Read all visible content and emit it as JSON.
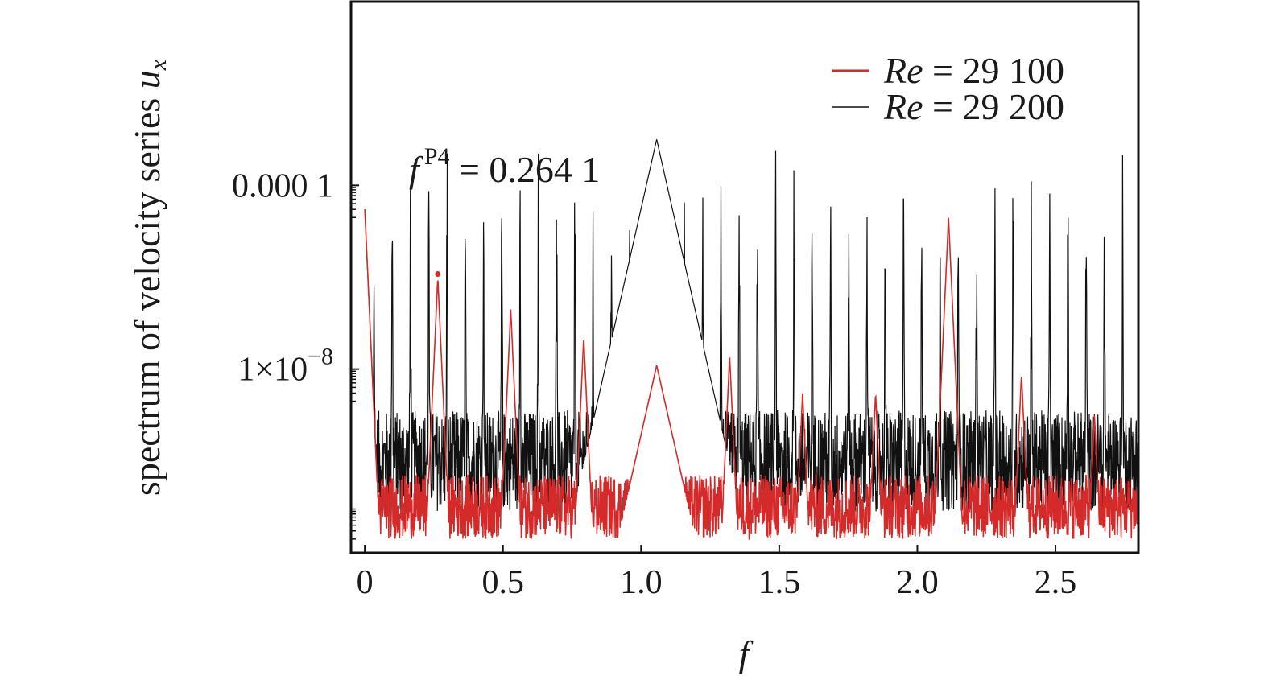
{
  "chart_data": {
    "type": "line",
    "xlabel": "f",
    "ylabel": "spectrum of velocity series ",
    "ylabel_var": "u",
    "ylabel_sub": "x",
    "xlim": [
      -0.05,
      2.8
    ],
    "ylim_log10": [
      -12,
      0
    ],
    "y_scale": "log",
    "x_ticks": [
      0,
      0.5,
      1.0,
      1.5,
      2.0,
      2.5
    ],
    "x_tick_labels": [
      "0",
      "0.5",
      "1.0",
      "1.5",
      "2.0",
      "2.5"
    ],
    "y_ticks": [
      {
        "value": 0.0001,
        "mantissa": "0.000 1",
        "exponent": ""
      },
      {
        "value": 1e-08,
        "mantissa": "1×10",
        "exponent": "−8"
      }
    ],
    "legend": {
      "placement": "top-right",
      "entries": [
        {
          "label_italic": "Re",
          "label_rest": " = 29 100",
          "color": "#d42a2a"
        },
        {
          "label_italic": "Re",
          "label_rest": " = 29 200",
          "color": "#111111"
        }
      ]
    },
    "annotation": {
      "symbol": "f",
      "superscript": "P4",
      "text": " = 0.264 1",
      "x": 0.2641
    },
    "series": [
      {
        "name": "Re = 29 100",
        "color": "#d42a2a",
        "floor_log10": -11,
        "peaks": [
          {
            "x": 0.0,
            "y": 3e-05
          },
          {
            "x": 0.2641,
            "y": 1e-06
          },
          {
            "x": 0.5282,
            "y": 2e-07
          },
          {
            "x": 0.7923,
            "y": 5e-08
          },
          {
            "x": 1.0564,
            "y": 1.2e-08
          },
          {
            "x": 1.3205,
            "y": 2e-08
          },
          {
            "x": 1.5846,
            "y": 3e-09
          },
          {
            "x": 1.8487,
            "y": 3e-09
          },
          {
            "x": 2.1128,
            "y": 2e-05
          },
          {
            "x": 2.3769,
            "y": 8e-09
          },
          {
            "x": 2.641,
            "y": 1e-09
          }
        ]
      },
      {
        "name": "Re = 29 200",
        "color": "#111111",
        "floor_log10": -10,
        "peaks": [
          {
            "x": 0.0,
            "y": 3e-05
          },
          {
            "x": 1.0564,
            "y": 0.001
          }
        ]
      }
    ]
  }
}
